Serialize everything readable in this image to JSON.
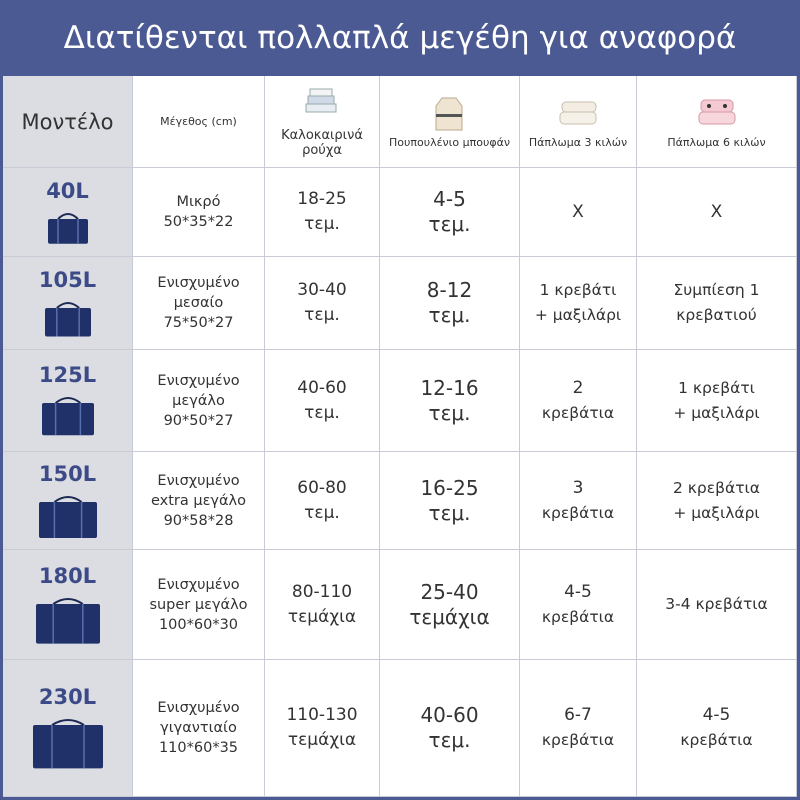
{
  "header": {
    "title": "Διατίθενται πολλαπλά μεγέθη για αναφορά"
  },
  "table": {
    "columns": [
      [
        "Μοντέλο"
      ],
      [
        "Μέγεθος (cm)"
      ],
      [
        "Καλοκαιρινά",
        "ρούχα"
      ],
      [
        "Πουπουλένιο μπουφάν"
      ],
      [
        "Πάπλωμα 3 κιλών"
      ],
      [
        "Πάπλωμα 6 κιλών"
      ]
    ],
    "rows": [
      [
        [
          "40L"
        ],
        [
          "Μικρό",
          "50*35*22"
        ],
        [
          "18-25",
          "τεμ."
        ],
        [
          "4-5",
          "τεμ."
        ],
        [
          "X"
        ],
        [
          "X"
        ]
      ],
      [
        [
          "105L"
        ],
        [
          "Ενισχυμένο",
          "μεσαίο",
          "75*50*27"
        ],
        [
          "30-40",
          "τεμ."
        ],
        [
          "8-12",
          "τεμ."
        ],
        [
          "1 κρεβάτι",
          "+ μαξιλάρι"
        ],
        [
          "Συμπίεση 1",
          "κρεβατιού"
        ]
      ],
      [
        [
          "125L"
        ],
        [
          "Ενισχυμένο",
          "μεγάλο",
          "90*50*27"
        ],
        [
          "40-60",
          "τεμ."
        ],
        [
          "12-16",
          "τεμ."
        ],
        [
          "2",
          "κρεβάτια"
        ],
        [
          "1 κρεβάτι",
          "+ μαξιλάρι"
        ]
      ],
      [
        [
          "150L"
        ],
        [
          "Ενισχυμένο",
          "extra μεγάλο",
          "90*58*28"
        ],
        [
          "60-80",
          "τεμ."
        ],
        [
          "16-25",
          "τεμ."
        ],
        [
          "3",
          "κρεβάτια"
        ],
        [
          "2 κρεβάτια",
          "+ μαξιλάρι"
        ]
      ],
      [
        [
          "180L"
        ],
        [
          "Ενισχυμένο",
          "super μεγάλο",
          "100*60*30"
        ],
        [
          "80-110",
          "τεμάχια"
        ],
        [
          "25-40",
          "τεμάχια"
        ],
        [
          "4-5",
          "κρεβάτια"
        ],
        [
          "3-4 κρεβάτια"
        ]
      ],
      [
        [
          "230L"
        ],
        [
          "Ενισχυμένο",
          "γιγαντιαίο",
          "110*60*35"
        ],
        [
          "110-130",
          "τεμάχια"
        ],
        [
          "40-60",
          "τεμ."
        ],
        [
          "6-7",
          "κρεβάτια"
        ],
        [
          "4-5",
          "κρεβάτια"
        ]
      ]
    ]
  }
}
